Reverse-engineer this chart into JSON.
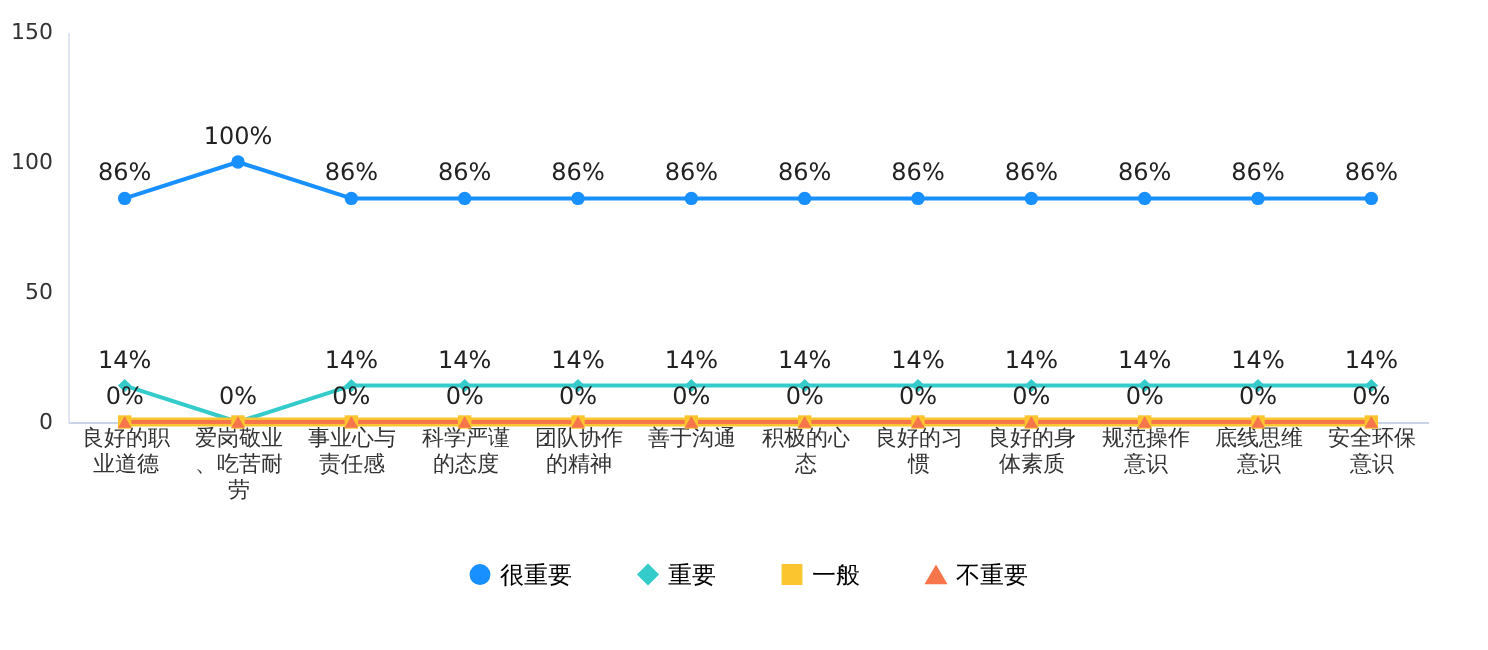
{
  "chart_data": {
    "type": "line",
    "categories": [
      "良好的职业道德",
      "爱岗敬业、吃苦耐劳",
      "事业心与责任感",
      "科学严谨的态度",
      "团队协作的精神",
      "善于沟通",
      "积极的心态",
      "良好的习惯",
      "良好的身体素质",
      "规范操作意识",
      "底线思维意识",
      "安全环保意识"
    ],
    "ylim": [
      0,
      150
    ],
    "yticks": [
      0,
      50,
      100,
      150
    ],
    "grid": false,
    "legend": "bottom",
    "series": [
      {
        "name": "很重要",
        "color": "#1890ff",
        "marker": "circle",
        "values": [
          86,
          100,
          86,
          86,
          86,
          86,
          86,
          86,
          86,
          86,
          86,
          86
        ],
        "value_labels": [
          "86%",
          "100%",
          "86%",
          "86%",
          "86%",
          "86%",
          "86%",
          "86%",
          "86%",
          "86%",
          "86%",
          "86%"
        ]
      },
      {
        "name": "重要",
        "color": "#36cbcb",
        "marker": "diamond",
        "values": [
          14,
          0,
          14,
          14,
          14,
          14,
          14,
          14,
          14,
          14,
          14,
          14
        ],
        "value_labels": [
          "14%",
          null,
          "14%",
          "14%",
          "14%",
          "14%",
          "14%",
          "14%",
          "14%",
          "14%",
          "14%",
          "14%"
        ]
      },
      {
        "name": "一般",
        "color": "#fbc530",
        "marker": "square",
        "values": [
          0,
          0,
          0,
          0,
          0,
          0,
          0,
          0,
          0,
          0,
          0,
          0
        ],
        "value_labels": [
          "0%",
          "0%",
          "0%",
          "0%",
          "0%",
          "0%",
          "0%",
          "0%",
          "0%",
          "0%",
          "0%",
          "0%"
        ]
      },
      {
        "name": "不重要",
        "color": "#f7754b",
        "marker": "triangle",
        "values": [
          0,
          0,
          0,
          0,
          0,
          0,
          0,
          0,
          0,
          0,
          0,
          0
        ],
        "value_labels": [
          null,
          null,
          null,
          null,
          null,
          null,
          null,
          null,
          null,
          null,
          null,
          null
        ]
      }
    ]
  }
}
